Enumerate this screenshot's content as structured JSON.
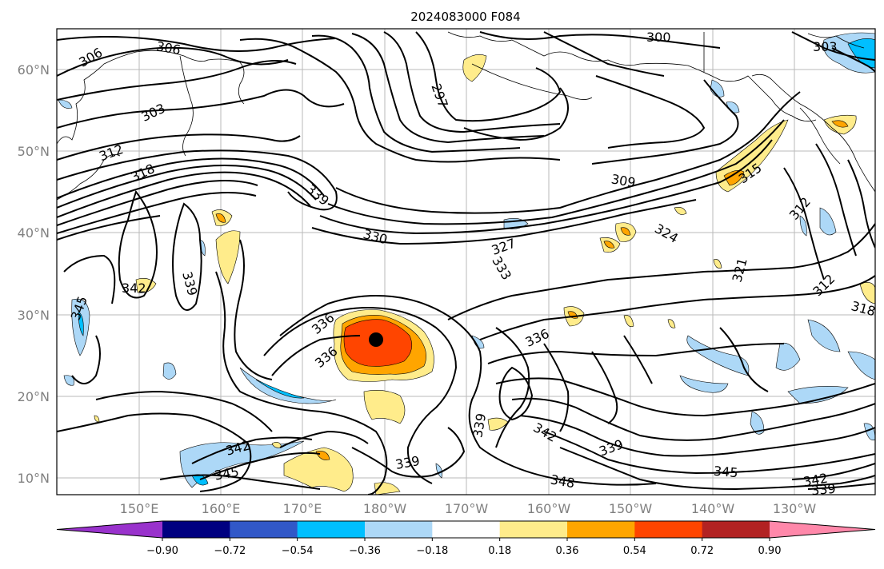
{
  "title": "2024083000 F084",
  "lat_labels": [
    "60°N",
    "50°N",
    "40°N",
    "30°N",
    "20°N",
    "10°N"
  ],
  "lon_labels": [
    "150°E",
    "160°E",
    "170°E",
    "180°W",
    "170°W",
    "160°W",
    "150°W",
    "140°W",
    "130°W"
  ],
  "colorbar": {
    "ticks": [
      "−0.90",
      "−0.72",
      "−0.54",
      "−0.36",
      "−0.18",
      "0.18",
      "0.36",
      "0.54",
      "0.72",
      "0.90"
    ],
    "colors": [
      "#9932cc",
      "#000080",
      "#3158c8",
      "#00bfff",
      "#add8f7",
      "#ffffff",
      "#ffec8b",
      "#ffa500",
      "#ff4500",
      "#b22222",
      "#ff88aa"
    ]
  },
  "contour_labels": [
    "306",
    "306",
    "303",
    "312",
    "318",
    "339",
    "330",
    "327",
    "297",
    "300",
    "303",
    "309",
    "315",
    "324",
    "321",
    "312",
    "312",
    "318",
    "333",
    "336",
    "336",
    "336",
    "342",
    "339",
    "345",
    "339",
    "342",
    "339",
    "339",
    "342",
    "345",
    "348",
    "345",
    "342",
    "339"
  ],
  "storm_marker": "tropical-cyclone-center"
}
